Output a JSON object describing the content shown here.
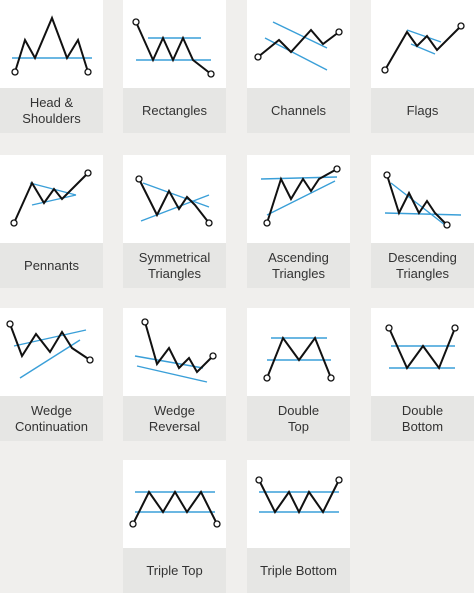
{
  "cards": [
    {
      "label": [
        "Head &",
        "Shoulders"
      ]
    },
    {
      "label": [
        "Rectangles"
      ]
    },
    {
      "label": [
        "Channels"
      ]
    },
    {
      "label": [
        "Flags"
      ]
    },
    {
      "label": [
        "Pennants"
      ]
    },
    {
      "label": [
        "Symmetrical",
        "Triangles"
      ]
    },
    {
      "label": [
        "Ascending",
        "Triangles"
      ]
    },
    {
      "label": [
        "Descending",
        "Triangles"
      ]
    },
    {
      "label": [
        "Wedge",
        "Continuation"
      ]
    },
    {
      "label": [
        "Wedge",
        "Reversal"
      ]
    },
    {
      "label": [
        "Double",
        "Top"
      ]
    },
    {
      "label": [
        "Double",
        "Bottom"
      ]
    },
    {
      "label": [
        "Triple Top"
      ]
    },
    {
      "label": [
        "Triple Bottom"
      ]
    }
  ]
}
